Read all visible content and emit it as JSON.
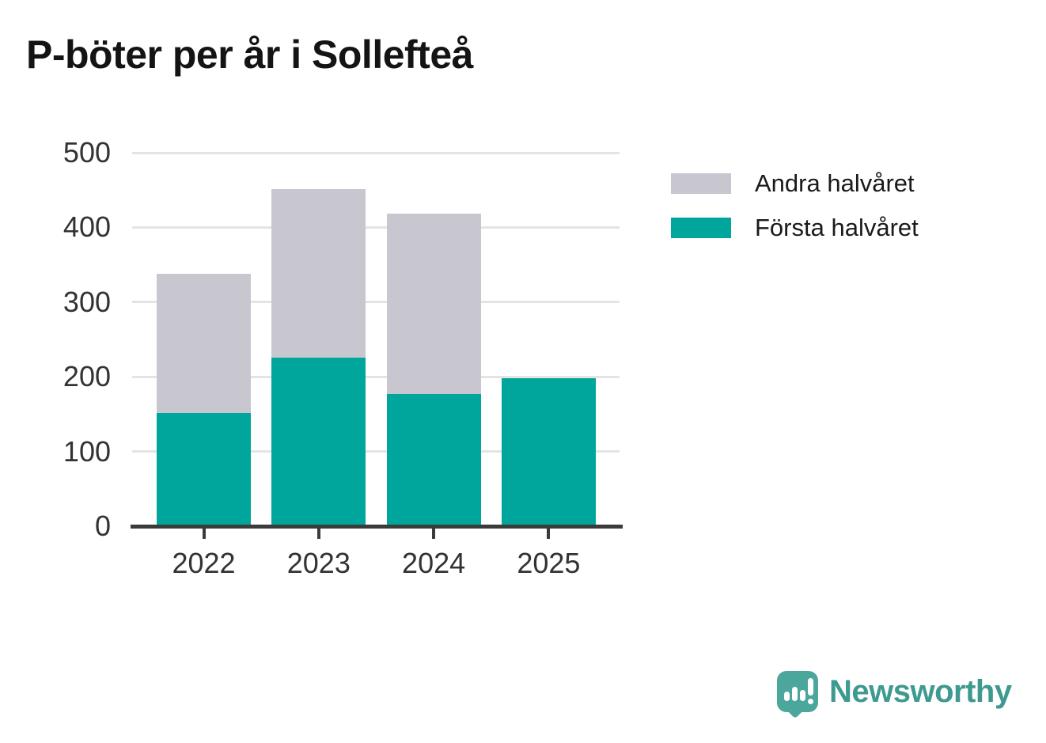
{
  "title": "P-böter per år i Sollefteå",
  "chart_data": {
    "type": "bar",
    "stacked": true,
    "title": "P-böter per år i Sollefteå",
    "categories": [
      "2022",
      "2023",
      "2024",
      "2025"
    ],
    "series": [
      {
        "name": "Andra halvåret",
        "color": "#c8c6cf",
        "values": [
          186,
          225,
          241,
          0
        ]
      },
      {
        "name": "Första halvåret",
        "color": "#00a59b",
        "values": [
          152,
          226,
          177,
          198
        ]
      }
    ],
    "totals": [
      338,
      451,
      418,
      198
    ],
    "xlabel": "",
    "ylabel": "",
    "ylim": [
      0,
      500
    ],
    "yticks": [
      0,
      100,
      200,
      300,
      400,
      500
    ],
    "grid": true,
    "legend_position": "top-right"
  },
  "legend": {
    "items": [
      {
        "label": "Andra halvåret",
        "color": "#c8c6cf"
      },
      {
        "label": "Första halvåret",
        "color": "#00a59b"
      }
    ]
  },
  "branding": {
    "name": "Newsworthy",
    "logo_color": "#4ba69b",
    "text_color": "#3e9a90"
  },
  "axis_style": {
    "line_color": "#3b3b3b",
    "grid_color": "#e4e4e4",
    "label_color": "#333333"
  }
}
